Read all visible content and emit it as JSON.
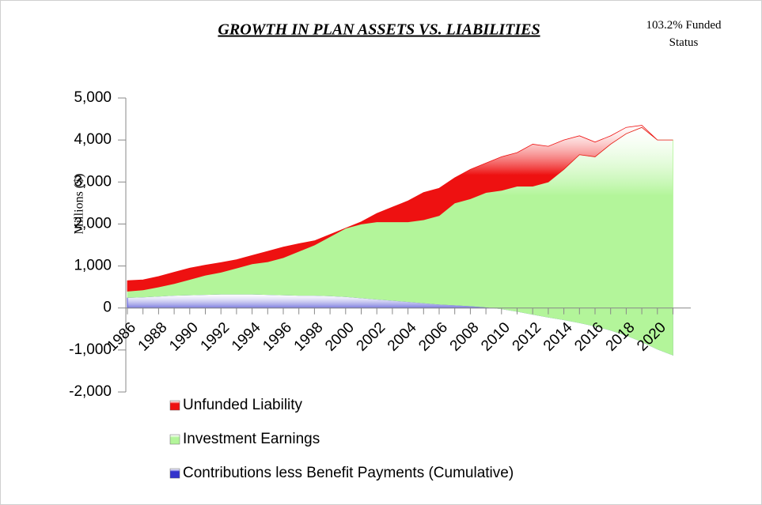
{
  "chart_data": {
    "type": "stacked_area",
    "title": "GROWTH IN PLAN ASSETS VS. LIABILITIES",
    "annotation": "103.2% Funded Status",
    "y_label": "Millions ($)",
    "categories": [
      "1986",
      null,
      "1988",
      null,
      "1990",
      null,
      "1992",
      null,
      "1994",
      null,
      "1996",
      null,
      "1998",
      null,
      "2000",
      null,
      "2002",
      null,
      "2004",
      null,
      "2006",
      null,
      "2008",
      null,
      "2010",
      null,
      "2012",
      null,
      "2014",
      null,
      "2016",
      null,
      "2018",
      null,
      "2020",
      null
    ],
    "series": [
      {
        "name": "Contributions less Benefit Payments (Cumulative)",
        "color": "#3333cc",
        "values": [
          250,
          260,
          280,
          300,
          310,
          320,
          330,
          330,
          330,
          320,
          310,
          300,
          300,
          290,
          270,
          240,
          210,
          180,
          150,
          120,
          90,
          70,
          50,
          20,
          -20,
          -80,
          -150,
          -220,
          -280,
          -350,
          -430,
          -530,
          -650,
          -800,
          -980,
          -1120
        ]
      },
      {
        "name": "Investment Earnings",
        "color": "#b3f59a",
        "values": [
          150,
          170,
          220,
          280,
          370,
          460,
          520,
          620,
          720,
          780,
          890,
          1050,
          1200,
          1410,
          1630,
          1760,
          1840,
          1870,
          1900,
          1980,
          2110,
          2430,
          2550,
          2730,
          2820,
          2980,
          3050,
          3220,
          3580,
          4000,
          4030,
          4430,
          4800,
          5100,
          4980,
          5120
        ]
      },
      {
        "name": "Unfunded Liability",
        "color": "#ee1111",
        "values": [
          250,
          240,
          250,
          270,
          270,
          240,
          230,
          200,
          200,
          250,
          250,
          180,
          100,
          50,
          0,
          50,
          200,
          350,
          500,
          650,
          650,
          600,
          700,
          700,
          800,
          800,
          1000,
          850,
          700,
          450,
          350,
          200,
          150,
          50,
          0,
          0
        ]
      }
    ],
    "ylim": [
      -2000,
      5000
    ],
    "yticks": [
      {
        "value": -2000,
        "label": "-2,000"
      },
      {
        "value": -1000,
        "label": "-1,000"
      },
      0,
      {
        "value": 1000,
        "label": "1,000"
      },
      {
        "value": 2000,
        "label": "2,000"
      },
      {
        "value": 3000,
        "label": "3,000"
      },
      {
        "value": 4000,
        "label": "4,000"
      },
      {
        "value": 5000,
        "label": "5,000"
      }
    ],
    "grid": false,
    "legend": "bottom"
  }
}
